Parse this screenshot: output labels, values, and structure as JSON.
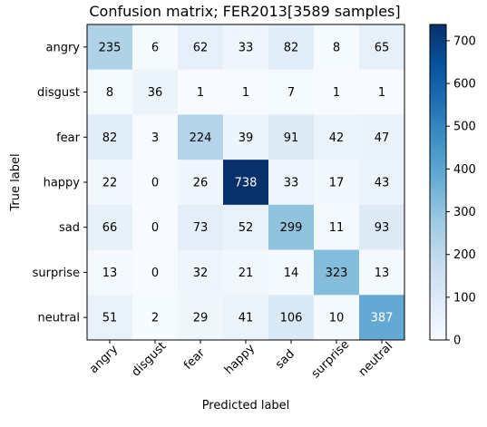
{
  "chart_data": {
    "type": "heatmap",
    "title": "Confusion matrix; FER2013[3589 samples]",
    "xlabel": "Predicted label",
    "ylabel": "True label",
    "x_categories": [
      "angry",
      "disgust",
      "fear",
      "happy",
      "sad",
      "surprise",
      "neutral"
    ],
    "y_categories": [
      "angry",
      "disgust",
      "fear",
      "happy",
      "sad",
      "surprise",
      "neutral"
    ],
    "values": [
      [
        235,
        6,
        62,
        33,
        82,
        8,
        65
      ],
      [
        8,
        36,
        1,
        1,
        7,
        1,
        1
      ],
      [
        82,
        3,
        224,
        39,
        91,
        42,
        47
      ],
      [
        22,
        0,
        26,
        738,
        33,
        17,
        43
      ],
      [
        66,
        0,
        73,
        52,
        299,
        11,
        93
      ],
      [
        13,
        0,
        32,
        21,
        14,
        323,
        13
      ],
      [
        51,
        2,
        29,
        41,
        106,
        10,
        387
      ]
    ],
    "colorbar": {
      "min": 0,
      "max": 738,
      "ticks": [
        0,
        100,
        200,
        300,
        400,
        500,
        600,
        700
      ],
      "colormap": "Blues"
    },
    "grid": false
  }
}
